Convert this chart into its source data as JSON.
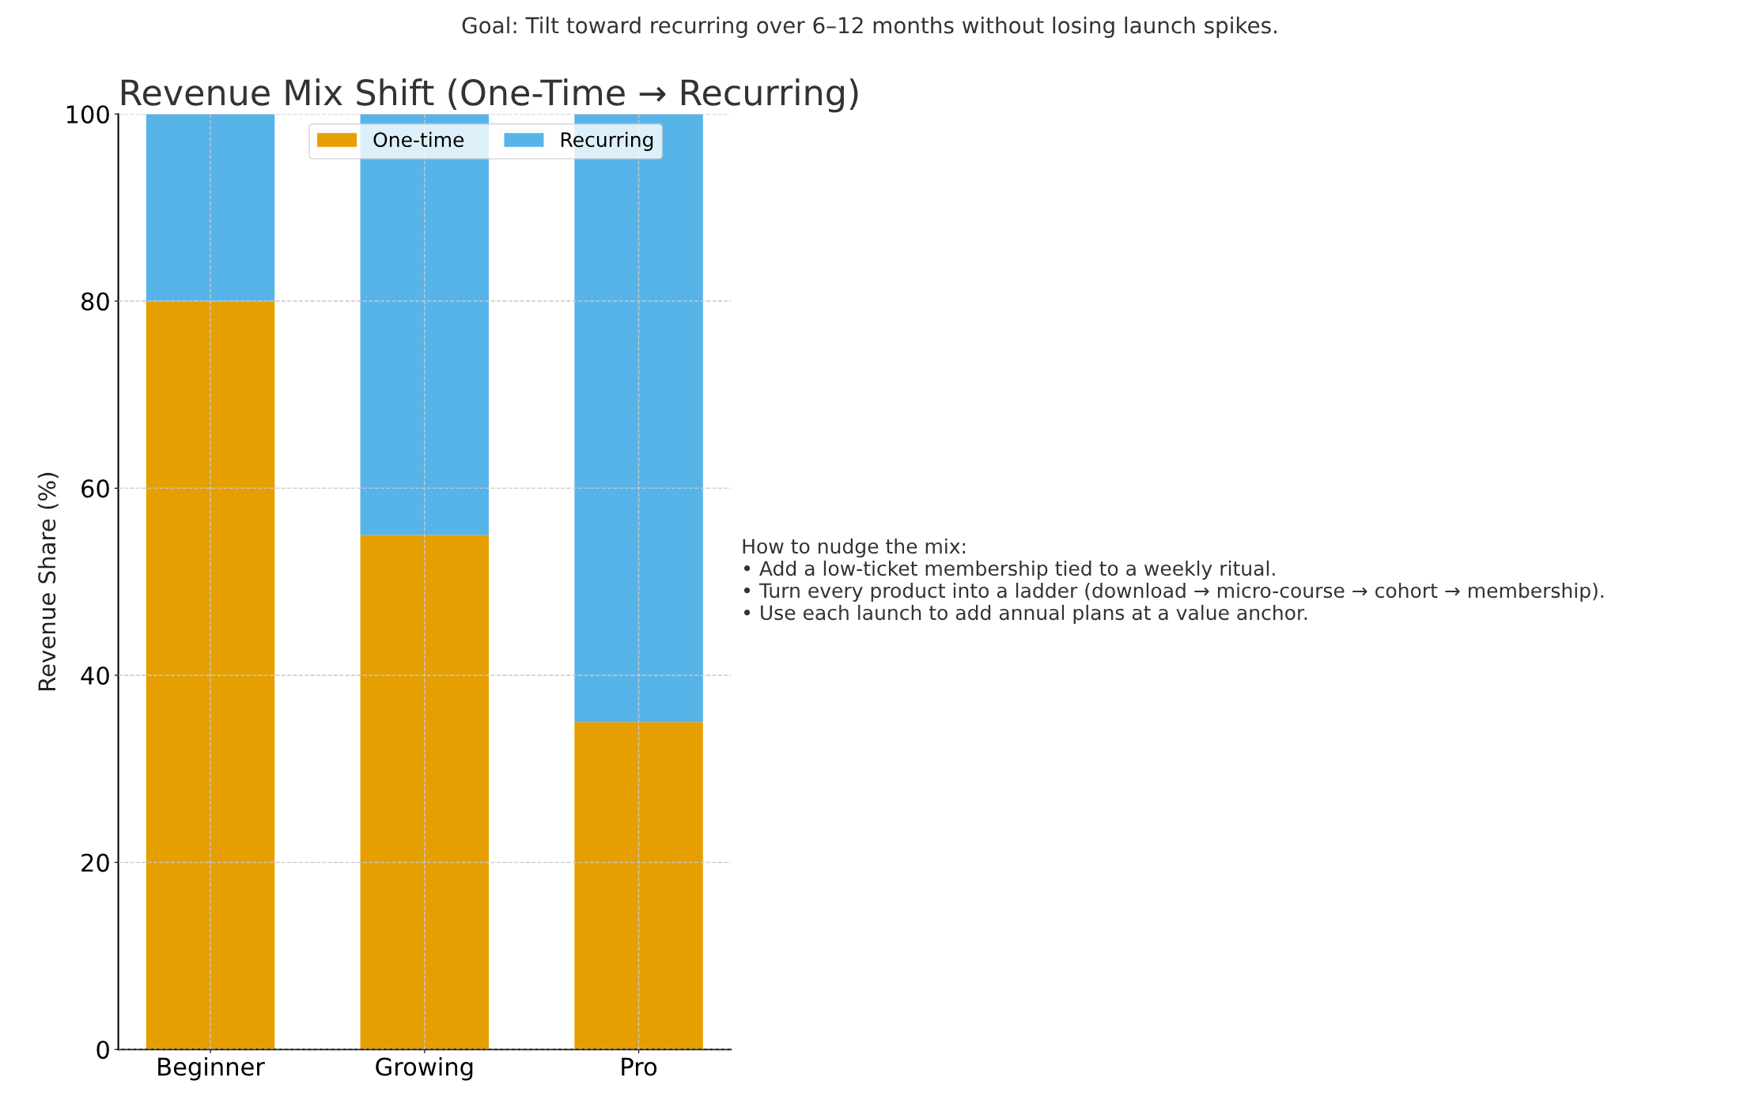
{
  "chart_data": {
    "type": "bar",
    "stacked": true,
    "title": "Revenue Mix Shift (One-Time → Recurring)",
    "subtitle": "Goal: Tilt toward recurring over 6–12 months without losing launch spikes.",
    "ylabel": "Revenue Share (%)",
    "categories": [
      "Beginner",
      "Growing",
      "Pro"
    ],
    "series": [
      {
        "name": "One-time",
        "color": "#e69f00",
        "values": [
          80,
          55,
          35
        ]
      },
      {
        "name": "Recurring",
        "color": "#56b4e9",
        "values": [
          20,
          45,
          65
        ]
      }
    ],
    "ylim": [
      0,
      100
    ],
    "yticks": [
      0,
      20,
      40,
      60,
      80,
      100
    ],
    "grid": true,
    "legend": "top",
    "annotations": [
      "How to nudge the mix:\n• Add a low-ticket membership tied to a weekly ritual.\n• Turn every product into a ladder (download → micro-course → cohort → membership).\n• Use each launch to add annual plans at a value anchor."
    ]
  }
}
